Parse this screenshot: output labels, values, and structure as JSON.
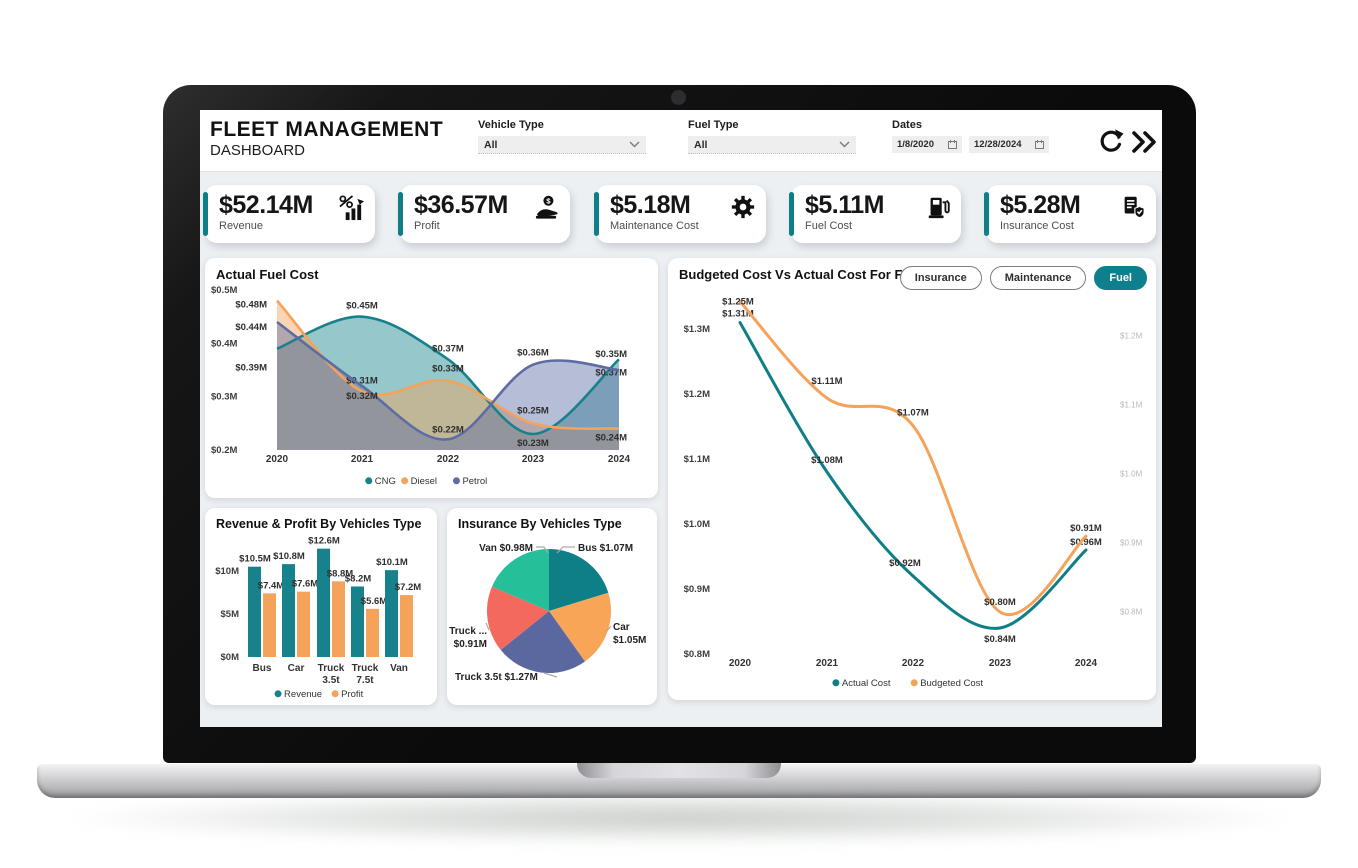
{
  "header": {
    "title": "FLEET MANAGEMENT",
    "subtitle": "DASHBOARD",
    "vehicle_filter": {
      "label": "Vehicle Type",
      "value": "All"
    },
    "fuel_filter": {
      "label": "Fuel Type",
      "value": "All"
    },
    "dates": {
      "label": "Dates",
      "start": "1/8/2020",
      "end": "12/28/2024"
    },
    "icons": [
      "refresh-icon",
      "double-chevron-right-icon"
    ]
  },
  "kpis": [
    {
      "value": "$52.14M",
      "label": "Revenue",
      "icon": "bar-growth-icon"
    },
    {
      "value": "$36.57M",
      "label": "Profit",
      "icon": "hand-coin-icon"
    },
    {
      "value": "$5.18M",
      "label": "Maintenance Cost",
      "icon": "gear-wrench-icon"
    },
    {
      "value": "$5.11M",
      "label": "Fuel Cost",
      "icon": "fuel-pump-icon"
    },
    {
      "value": "$5.28M",
      "label": "Insurance Cost",
      "icon": "shield-doc-icon"
    }
  ],
  "colors": {
    "teal": "#0E7F86",
    "teal2": "#17828C",
    "orange": "#F5A25A",
    "petrol_blue": "#5E6CA4",
    "salmon": "#F4695E",
    "mint": "#25BF9A",
    "pie_orange": "#F8A558",
    "pie_slate": "#5A689F"
  },
  "chart_data": [
    {
      "id": "actual_fuel_cost",
      "type": "area",
      "title": "Actual Fuel Cost",
      "categories": [
        "2020",
        "2021",
        "2022",
        "2023",
        "2024"
      ],
      "series": [
        {
          "name": "CNG",
          "color": "#17828C",
          "values": [
            0.39,
            0.45,
            0.37,
            0.23,
            0.37
          ]
        },
        {
          "name": "Diesel",
          "color": "#F5A25A",
          "values": [
            0.48,
            0.31,
            0.33,
            0.25,
            0.24
          ]
        },
        {
          "name": "Petrol",
          "color": "#5E6CA4",
          "values": [
            0.44,
            0.32,
            0.22,
            0.36,
            0.35
          ]
        }
      ],
      "yticks": [
        0.5,
        0.4,
        0.3,
        0.2
      ],
      "ylim": [
        0.2,
        0.5
      ],
      "legend_position": "bottom"
    },
    {
      "id": "budgeted_vs_actual_fuel",
      "type": "line",
      "title": "Budgeted Cost Vs Actual Cost For Fuel",
      "toggles": [
        {
          "label": "Insurance",
          "active": false
        },
        {
          "label": "Maintenance",
          "active": false
        },
        {
          "label": "Fuel",
          "active": true
        }
      ],
      "categories": [
        "2020",
        "2021",
        "2022",
        "2023",
        "2024"
      ],
      "series": [
        {
          "name": "Actual Cost",
          "color": "#0E7F86",
          "axis": "left",
          "values": [
            1.31,
            1.08,
            0.92,
            0.84,
            0.96
          ]
        },
        {
          "name": "Budgeted Cost",
          "color": "#F5A25A",
          "axis": "right",
          "values": [
            1.25,
            1.11,
            1.07,
            0.8,
            0.91
          ]
        }
      ],
      "left_ticks": [
        1.3,
        1.2,
        1.1,
        1.0,
        0.9,
        0.8
      ],
      "right_ticks": [
        1.2,
        1.1,
        1.0,
        0.9,
        0.8
      ],
      "left_ylim": [
        0.8,
        1.3
      ],
      "right_ylim": [
        0.8,
        1.2
      ],
      "legend_position": "bottom"
    },
    {
      "id": "revenue_profit_by_vehicle",
      "type": "bar",
      "title": "Revenue & Profit By Vehicles Type",
      "categories": [
        "Bus",
        "Car",
        "Truck 3.5t",
        "Truck 7.5t",
        "Van"
      ],
      "series": [
        {
          "name": "Revenue",
          "color": "#17828C",
          "values": [
            10.5,
            10.8,
            12.6,
            8.2,
            10.1
          ]
        },
        {
          "name": "Profit",
          "color": "#F5A25A",
          "values": [
            7.4,
            7.6,
            8.8,
            5.6,
            7.2
          ]
        }
      ],
      "yticks": [
        10,
        5,
        0
      ],
      "ylim": [
        0,
        13
      ],
      "legend_position": "bottom"
    },
    {
      "id": "insurance_by_vehicle",
      "type": "pie",
      "title": "Insurance By Vehicles Type",
      "slices": [
        {
          "name": "Bus",
          "value": 1.07,
          "color": "#0E7F86",
          "lines": [
            "Bus $1.07M"
          ]
        },
        {
          "name": "Car",
          "value": 1.05,
          "color": "#F8A558",
          "lines": [
            "Car",
            "$1.05M"
          ]
        },
        {
          "name": "Truck 3.5t",
          "value": 1.27,
          "color": "#5A689F",
          "lines": [
            "Truck 3.5t $1.27M"
          ]
        },
        {
          "name": "Truck 7.5t",
          "value": 0.91,
          "color": "#F4695E",
          "lines": [
            "Truck ...",
            "$0.91M"
          ]
        },
        {
          "name": "Van",
          "value": 0.98,
          "color": "#25BF9A",
          "lines": [
            "Van $0.98M"
          ]
        }
      ]
    }
  ]
}
